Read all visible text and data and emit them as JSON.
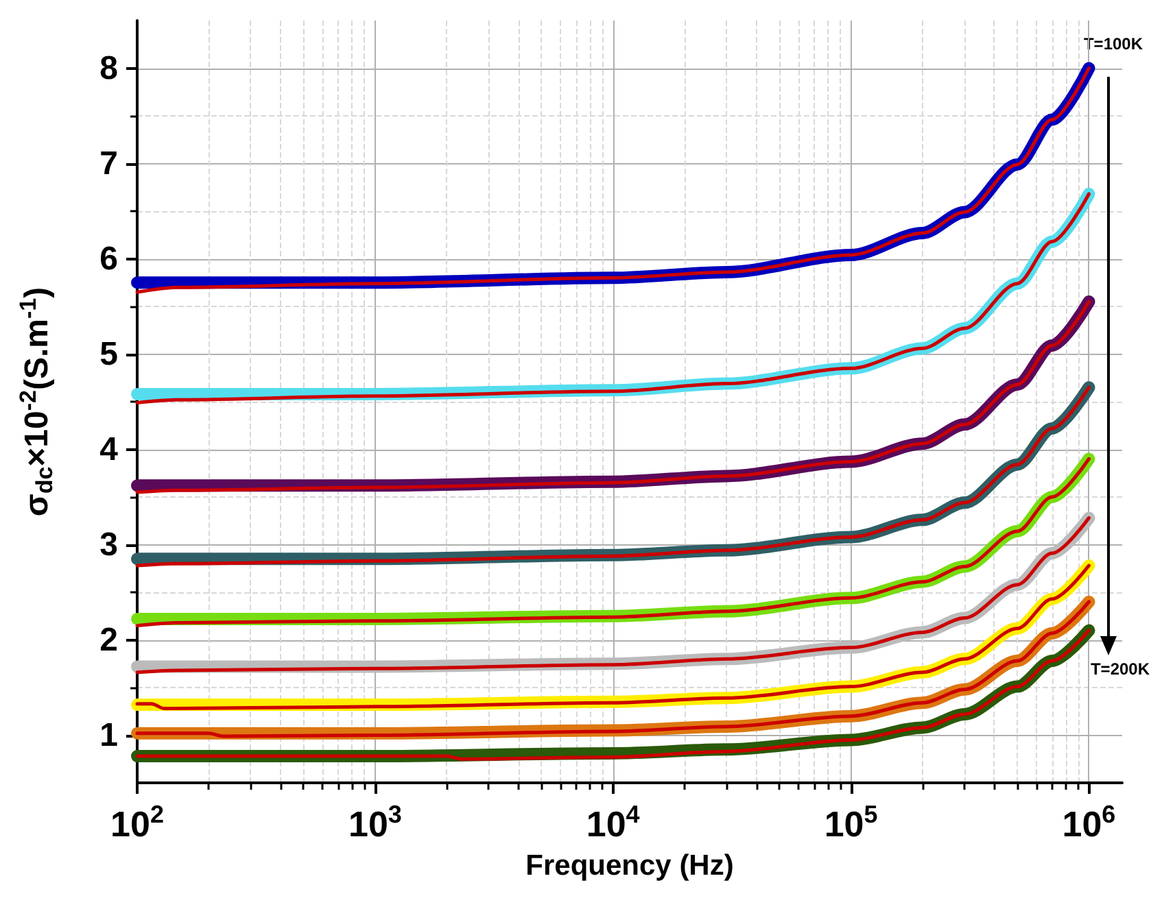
{
  "chart_data": {
    "type": "line",
    "xlabel": "Frequency (Hz)",
    "ylabel": "σ$_{dc}$×10$^{-2}$(S.m$^{-1}$)",
    "annotations": [
      "T=100K",
      "T=200K"
    ],
    "log": "x",
    "grid": true,
    "marker": "none",
    "line_style": "solid",
    "xlim": [
      100,
      1380000
    ],
    "ylim": [
      0.5,
      8.5
    ],
    "xticks": [
      {
        "value": 100,
        "label": "10$^{2}$"
      },
      {
        "value": 200,
        "label": null
      },
      {
        "value": 300,
        "label": null
      },
      {
        "value": 400,
        "label": null
      },
      {
        "value": 500,
        "label": null
      },
      {
        "value": 600,
        "label": null
      },
      {
        "value": 700,
        "label": null
      },
      {
        "value": 800,
        "label": null
      },
      {
        "value": 900,
        "label": null
      },
      {
        "value": 1000,
        "label": "10$^{3}$"
      },
      {
        "value": 2000,
        "label": null
      },
      {
        "value": 3000,
        "label": null
      },
      {
        "value": 4000,
        "label": null
      },
      {
        "value": 5000,
        "label": null
      },
      {
        "value": 6000,
        "label": null
      },
      {
        "value": 7000,
        "label": null
      },
      {
        "value": 8000,
        "label": null
      },
      {
        "value": 9000,
        "label": null
      },
      {
        "value": 10000,
        "label": "10$^{4}$"
      },
      {
        "value": 20000,
        "label": null
      },
      {
        "value": 30000,
        "label": null
      },
      {
        "value": 40000,
        "label": null
      },
      {
        "value": 50000,
        "label": null
      },
      {
        "value": 60000,
        "label": null
      },
      {
        "value": 70000,
        "label": null
      },
      {
        "value": 80000,
        "label": null
      },
      {
        "value": 90000,
        "label": null
      },
      {
        "value": 100000,
        "label": "10$^{5}$"
      },
      {
        "value": 200000,
        "label": null
      },
      {
        "value": 300000,
        "label": null
      },
      {
        "value": 400000,
        "label": null
      },
      {
        "value": 500000,
        "label": null
      },
      {
        "value": 600000,
        "label": null
      },
      {
        "value": 700000,
        "label": null
      },
      {
        "value": 800000,
        "label": null
      },
      {
        "value": 900000,
        "label": null
      },
      {
        "value": 1000000,
        "label": "10$^{6}$"
      }
    ],
    "yticks": [
      1,
      {
        "value": 1.5,
        "label": null
      },
      2,
      {
        "value": 2.5,
        "label": null
      },
      3,
      {
        "value": 3.5,
        "label": null
      },
      4,
      {
        "value": 4.5,
        "label": null
      },
      5,
      {
        "value": 5.5,
        "label": null
      },
      6,
      {
        "value": 6.5,
        "label": null
      },
      7,
      {
        "value": 7.5,
        "label": null
      },
      8
    ],
    "x": [
      100,
      1000,
      10000,
      30000,
      100000,
      200000,
      300000,
      500000,
      700000,
      1000000
    ],
    "series": [
      {
        "color": "#0000bb",
        "values": [
          5.75,
          5.75,
          5.8,
          5.86,
          6.04,
          6.27,
          6.49,
          6.99,
          7.46,
          8.0
        ]
      },
      {
        "color": "#55ddee",
        "values": [
          4.58,
          4.58,
          4.62,
          4.69,
          4.85,
          5.06,
          5.27,
          5.74,
          6.18,
          6.68
        ]
      },
      {
        "color": "#5a0a5a",
        "values": [
          3.62,
          3.62,
          3.66,
          3.72,
          3.87,
          4.06,
          4.26,
          4.68,
          5.09,
          5.55
        ]
      },
      {
        "color": "#2f5f66",
        "values": [
          2.85,
          2.85,
          2.89,
          2.94,
          3.08,
          3.26,
          3.44,
          3.84,
          4.22,
          4.65
        ]
      },
      {
        "color": "#77dd11",
        "values": [
          2.22,
          2.22,
          2.25,
          2.3,
          2.44,
          2.61,
          2.77,
          3.14,
          3.5,
          3.9
        ]
      },
      {
        "color": "#bbbbbb",
        "values": [
          1.72,
          1.72,
          1.75,
          1.8,
          1.92,
          2.08,
          2.23,
          2.58,
          2.91,
          3.28
        ]
      },
      {
        "color": "#ffee00",
        "values": [
          1.32,
          1.32,
          1.35,
          1.39,
          1.51,
          1.66,
          1.8,
          2.12,
          2.43,
          2.78
        ]
      },
      {
        "color": "#dd7711",
        "values": [
          1.02,
          1.02,
          1.05,
          1.09,
          1.2,
          1.34,
          1.48,
          1.78,
          2.07,
          2.4
        ]
      },
      {
        "color": "#2a5a0a",
        "values": [
          0.78,
          0.78,
          0.81,
          0.85,
          0.95,
          1.08,
          1.22,
          1.51,
          1.78,
          2.1
        ]
      },
      {
        "color": "#cc0000",
        "x": [
          100,
          150,
          1000,
          10000,
          30000,
          100000,
          200000,
          300000,
          500000,
          700000,
          1000000
        ],
        "values": [
          5.65,
          5.7,
          5.74,
          5.8,
          5.86,
          6.04,
          6.27,
          6.49,
          6.99,
          7.46,
          8.0
        ]
      },
      {
        "color": "#cc0000",
        "x": [
          100,
          150,
          1000,
          10000,
          30000,
          100000,
          200000,
          300000,
          500000,
          700000,
          1000000
        ],
        "values": [
          4.49,
          4.52,
          4.56,
          4.61,
          4.69,
          4.85,
          5.06,
          5.27,
          5.74,
          6.18,
          6.68
        ]
      },
      {
        "color": "#cc0000",
        "x": [
          100,
          150,
          1000,
          10000,
          30000,
          100000,
          200000,
          300000,
          500000,
          700000,
          1000000
        ],
        "values": [
          3.55,
          3.57,
          3.6,
          3.65,
          3.72,
          3.87,
          4.06,
          4.26,
          4.68,
          5.09,
          5.55
        ]
      },
      {
        "color": "#cc0000",
        "x": [
          100,
          150,
          1000,
          10000,
          30000,
          100000,
          200000,
          300000,
          500000,
          700000,
          1000000
        ],
        "values": [
          2.78,
          2.8,
          2.83,
          2.88,
          2.94,
          3.08,
          3.26,
          3.44,
          3.84,
          4.22,
          4.65
        ]
      },
      {
        "color": "#cc0000",
        "x": [
          100,
          150,
          1000,
          10000,
          30000,
          100000,
          200000,
          300000,
          500000,
          700000,
          1000000
        ],
        "values": [
          2.15,
          2.18,
          2.2,
          2.24,
          2.3,
          2.44,
          2.61,
          2.77,
          3.14,
          3.5,
          3.9
        ]
      },
      {
        "color": "#cc0000",
        "x": [
          100,
          150,
          1000,
          10000,
          30000,
          100000,
          200000,
          300000,
          500000,
          700000,
          1000000
        ],
        "values": [
          1.66,
          1.68,
          1.7,
          1.74,
          1.8,
          1.92,
          2.08,
          2.23,
          2.58,
          2.91,
          3.28
        ]
      },
      {
        "color": "#cc0000",
        "x": [
          100,
          115,
          130,
          1000,
          10000,
          30000,
          100000,
          200000,
          300000,
          500000,
          700000,
          1000000
        ],
        "values": [
          1.33,
          1.33,
          1.28,
          1.3,
          1.34,
          1.39,
          1.51,
          1.66,
          1.8,
          2.12,
          2.43,
          2.78
        ]
      },
      {
        "color": "#cc0000",
        "x": [
          100,
          200,
          230,
          1000,
          10000,
          30000,
          100000,
          200000,
          300000,
          500000,
          700000,
          1000000
        ],
        "values": [
          1.02,
          1.02,
          0.99,
          1.0,
          1.04,
          1.09,
          1.2,
          1.34,
          1.48,
          1.78,
          2.07,
          2.4
        ]
      },
      {
        "color": "#cc0000",
        "x": [
          100,
          2000,
          2300,
          10000,
          30000,
          100000,
          200000,
          300000,
          500000,
          700000,
          1000000
        ],
        "values": [
          0.78,
          0.78,
          0.75,
          0.77,
          0.83,
          0.95,
          1.08,
          1.22,
          1.51,
          1.78,
          2.1
        ]
      }
    ]
  }
}
